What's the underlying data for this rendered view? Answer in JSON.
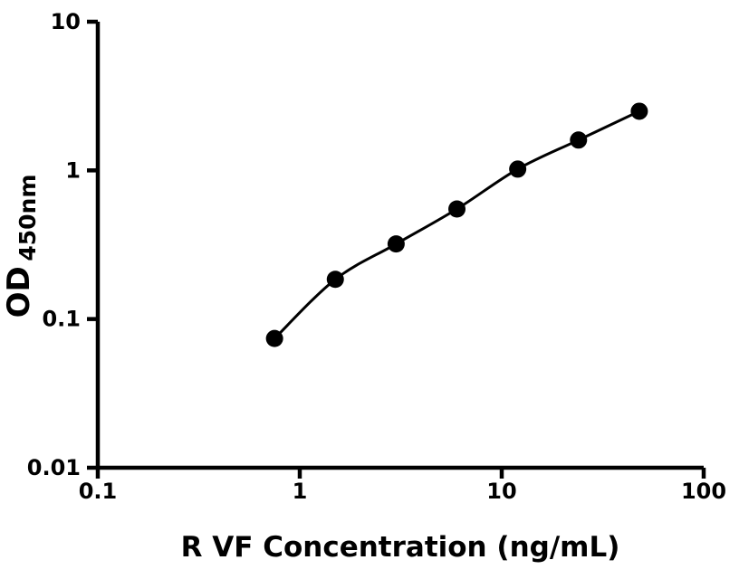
{
  "figure": {
    "background": "#ffffff"
  },
  "chart_data": {
    "type": "scatter",
    "title": "",
    "xlabel": "R VF Concentration (ng/mL)",
    "ylabel": "OD450nm",
    "ylabel_main": "OD",
    "ylabel_sub": "450nm",
    "xscale": "log",
    "yscale": "log",
    "xlim": [
      0.1,
      100
    ],
    "ylim": [
      0.01,
      10
    ],
    "x": [
      0.75,
      1.5,
      3,
      6,
      12,
      24,
      48
    ],
    "y": [
      0.074,
      0.185,
      0.32,
      0.55,
      1.02,
      1.6,
      2.5
    ],
    "x_ticks": [
      {
        "value": 0.1,
        "label": "0.1"
      },
      {
        "value": 1,
        "label": "1"
      },
      {
        "value": 10,
        "label": "10"
      },
      {
        "value": 100,
        "label": "100"
      }
    ],
    "y_ticks": [
      {
        "value": 0.01,
        "label": "0.01"
      },
      {
        "value": 0.1,
        "label": "0.1"
      },
      {
        "value": 1,
        "label": "1"
      },
      {
        "value": 10,
        "label": "10"
      }
    ],
    "grid": false,
    "legend": "none",
    "marker": {
      "shape": "circle",
      "color": "#000000",
      "radius": 9.5
    },
    "line": {
      "color": "#000000",
      "width": 3,
      "style": "smooth"
    },
    "axis_color": "#000000",
    "background": "#ffffff"
  }
}
